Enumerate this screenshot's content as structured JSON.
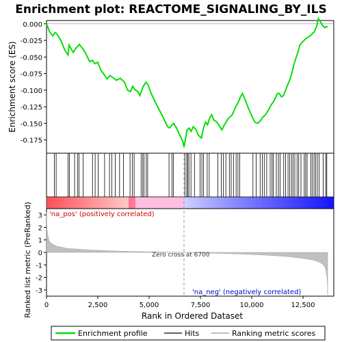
{
  "chart_data": {
    "type": "line",
    "title": "Enrichment plot: REACTOME_SIGNALING_BY_ILS",
    "top_panel": {
      "ylabel": "Enrichment score (ES)",
      "ylim": [
        -0.195,
        0.005
      ],
      "y_ticks": [
        0.0,
        -0.025,
        -0.05,
        -0.075,
        -0.1,
        -0.125,
        -0.15,
        -0.175
      ],
      "y_tick_labels": [
        "0.000",
        "-0.025",
        "-0.050",
        "-0.075",
        "-0.100",
        "-0.125",
        "-0.150",
        "-0.175"
      ],
      "series": [
        {
          "name": "Enrichment profile",
          "color": "#00e000",
          "x": [
            0,
            150,
            300,
            420,
            500,
            700,
            900,
            1050,
            1100,
            1300,
            1450,
            1600,
            1750,
            1900,
            2100,
            2250,
            2350,
            2500,
            2650,
            2800,
            2950,
            3100,
            3200,
            3400,
            3600,
            3800,
            3950,
            4100,
            4200,
            4300,
            4450,
            4550,
            4700,
            4850,
            4950,
            5100,
            5300,
            5500,
            5700,
            5900,
            6000,
            6100,
            6200,
            6350,
            6500,
            6650,
            6700,
            6780,
            6850,
            6950,
            7050,
            7150,
            7300,
            7400,
            7550,
            7650,
            7750,
            7850,
            7950,
            8050,
            8150,
            8300,
            8450,
            8550,
            8650,
            8750,
            8850,
            8950,
            9050,
            9150,
            9250,
            9350,
            9450,
            9550,
            9650,
            9750,
            9850,
            9950,
            10050,
            10150,
            10300,
            10450,
            10550,
            10650,
            10750,
            10850,
            10950,
            11050,
            11150,
            11250,
            11350,
            11450,
            11550,
            11650,
            11750,
            11850,
            11950,
            12050,
            12150,
            12250,
            12350,
            12450,
            12550,
            12650,
            12750,
            12850,
            12950,
            13050,
            13150,
            13250,
            13350,
            13450,
            13550,
            13650,
            13700
          ],
          "y": [
            0.0,
            -0.012,
            -0.018,
            -0.013,
            -0.015,
            -0.025,
            -0.04,
            -0.047,
            -0.032,
            -0.043,
            -0.036,
            -0.031,
            -0.037,
            -0.044,
            -0.057,
            -0.055,
            -0.06,
            -0.058,
            -0.07,
            -0.076,
            -0.083,
            -0.078,
            -0.08,
            -0.085,
            -0.082,
            -0.088,
            -0.1,
            -0.102,
            -0.094,
            -0.099,
            -0.102,
            -0.108,
            -0.095,
            -0.088,
            -0.092,
            -0.105,
            -0.118,
            -0.13,
            -0.142,
            -0.155,
            -0.157,
            -0.153,
            -0.15,
            -0.158,
            -0.168,
            -0.178,
            -0.186,
            -0.172,
            -0.16,
            -0.157,
            -0.162,
            -0.155,
            -0.16,
            -0.168,
            -0.172,
            -0.157,
            -0.148,
            -0.152,
            -0.142,
            -0.137,
            -0.145,
            -0.148,
            -0.155,
            -0.16,
            -0.153,
            -0.148,
            -0.143,
            -0.14,
            -0.137,
            -0.13,
            -0.123,
            -0.118,
            -0.11,
            -0.105,
            -0.112,
            -0.12,
            -0.128,
            -0.135,
            -0.142,
            -0.148,
            -0.15,
            -0.145,
            -0.14,
            -0.138,
            -0.133,
            -0.128,
            -0.122,
            -0.118,
            -0.112,
            -0.105,
            -0.105,
            -0.11,
            -0.108,
            -0.1,
            -0.092,
            -0.085,
            -0.075,
            -0.062,
            -0.052,
            -0.043,
            -0.032,
            -0.028,
            -0.025,
            -0.022,
            -0.02,
            -0.018,
            -0.015,
            -0.012,
            -0.005,
            0.008,
            0.003,
            -0.002,
            -0.006,
            -0.004,
            -0.005
          ]
        }
      ]
    },
    "hits_panel": {
      "legend_label": "Hits",
      "positions": [
        380,
        470,
        1050,
        1120,
        1370,
        1510,
        1580,
        1780,
        2240,
        2370,
        2520,
        2830,
        3070,
        3180,
        3350,
        3560,
        3750,
        4070,
        4180,
        4270,
        4610,
        4690,
        4750,
        4860,
        4930,
        5970,
        6110,
        6180,
        6740,
        6830,
        6880,
        6940,
        7040,
        7210,
        7480,
        7570,
        7650,
        7830,
        7930,
        8350,
        8520,
        8620,
        8740,
        8910,
        9000,
        9110,
        9240,
        9330,
        9420,
        10060,
        10220,
        10410,
        10520,
        10610,
        10730,
        10900,
        10990,
        11050,
        11200,
        11300,
        11380,
        11560,
        11650,
        11770,
        11850,
        11940,
        12020,
        12100,
        12210,
        12290,
        12400,
        12560,
        12630,
        12700,
        12880,
        12960,
        13040,
        13120,
        13200,
        13290,
        13480,
        13610,
        13660
      ]
    },
    "ranking_panel": {
      "ylabel": "Ranked list metric (PreRanked)",
      "legend_label": "Ranking metric scores",
      "ylim": [
        -3.5,
        3.5
      ],
      "y_ticks": [
        3,
        2,
        1,
        0,
        -1,
        -2,
        -3
      ],
      "y_tick_labels": [
        "3",
        "2",
        "1",
        "0",
        "-1",
        "-2",
        "-3"
      ],
      "metric_curve": {
        "x": [
          0,
          20,
          60,
          120,
          250,
          500,
          1000,
          2000,
          3000,
          4000,
          5000,
          6000,
          6700,
          7500,
          8500,
          9500,
          10500,
          11500,
          12000,
          12500,
          13000,
          13300,
          13500,
          13600,
          13680,
          13700
        ],
        "y": [
          3.2,
          2.0,
          1.4,
          0.95,
          0.7,
          0.5,
          0.32,
          0.2,
          0.13,
          0.08,
          0.05,
          0.02,
          0.0,
          -0.04,
          -0.08,
          -0.13,
          -0.2,
          -0.3,
          -0.38,
          -0.48,
          -0.62,
          -0.78,
          -1.0,
          -1.3,
          -2.2,
          -3.4
        ]
      },
      "zero_cross_label": "Zero cross at 6700",
      "zero_cross": 6700,
      "pos_label": "'na_pos' (positively correlated)",
      "neg_label": "'na_neg' (negatively correlated)"
    },
    "xlabel": "Rank in Ordered Dataset",
    "xlim": [
      0,
      14000
    ],
    "x_ticks": [
      0,
      2500,
      5000,
      7500,
      10000,
      12500
    ],
    "x_tick_labels": [
      "0",
      "2,500",
      "5,000",
      "7,500",
      "10,000",
      "12,500"
    ],
    "colors": {
      "profile": "#00e000",
      "positive_bar": "#ff0000",
      "negative_bar": "#0000ff",
      "neg_label": "#0000cc",
      "pos_label": "#cc0000",
      "metric_fill": "#c0c0c0"
    },
    "legend": {
      "position": "bottom",
      "items": [
        "Enrichment profile",
        "Hits",
        "Ranking metric scores"
      ]
    }
  }
}
